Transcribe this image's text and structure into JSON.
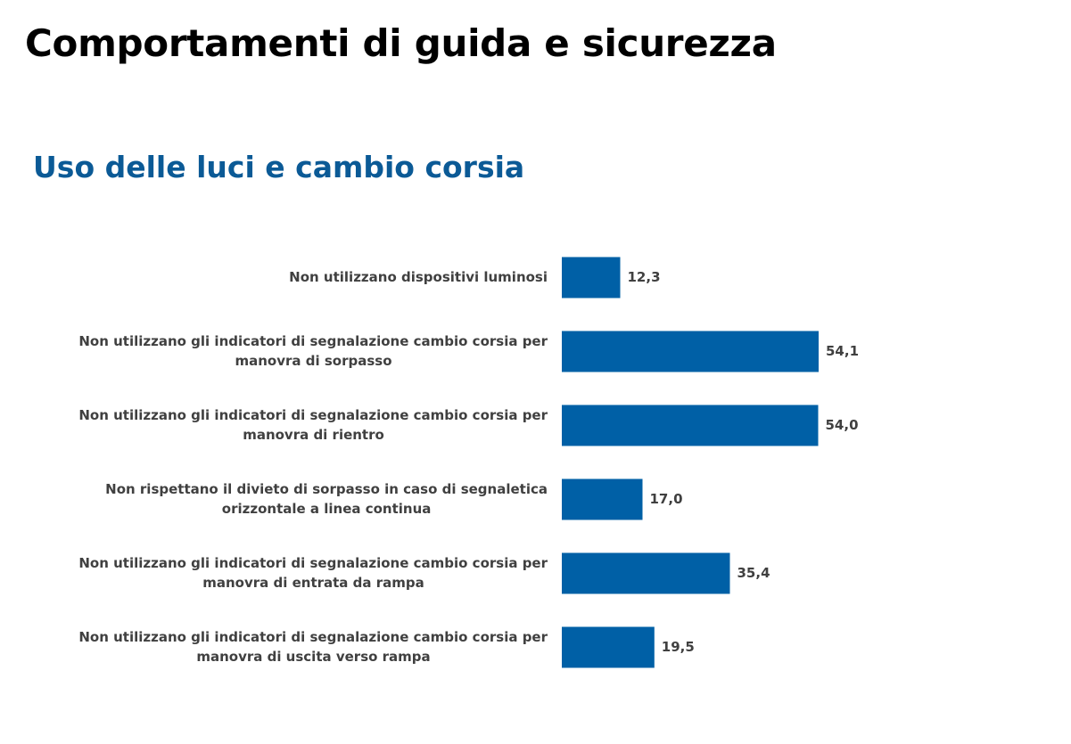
{
  "page": {
    "title": "Comportamenti di guida e sicurezza"
  },
  "colors": {
    "bar": "#0060A6",
    "subtitle": "#0B5A96",
    "label_text": "#404040"
  },
  "chart_data": {
    "type": "bar",
    "orientation": "horizontal",
    "title": "Uso delle luci e cambio corsia",
    "categories": [
      [
        "Non utilizzano dispositivi luminosi"
      ],
      [
        "Non utilizzano gli indicatori di segnalazione cambio corsia per",
        "manovra di sorpasso"
      ],
      [
        "Non utilizzano gli indicatori di segnalazione cambio corsia per",
        "manovra di rientro"
      ],
      [
        "Non rispettano il divieto di sorpasso in caso di segnaletica",
        "orizzontale a linea continua"
      ],
      [
        "Non utilizzano gli indicatori di segnalazione cambio corsia per",
        "manovra di entrata da rampa"
      ],
      [
        "Non utilizzano gli indicatori di segnalazione cambio corsia per",
        "manovra di uscita verso rampa"
      ]
    ],
    "values": [
      12.3,
      54.1,
      54.0,
      17.0,
      35.4,
      19.5
    ],
    "value_labels": [
      "12,3",
      "54,1",
      "54,0",
      "17,0",
      "35,4",
      "19,5"
    ],
    "xlim": [
      0,
      100
    ],
    "grid": false,
    "legend": "none"
  }
}
